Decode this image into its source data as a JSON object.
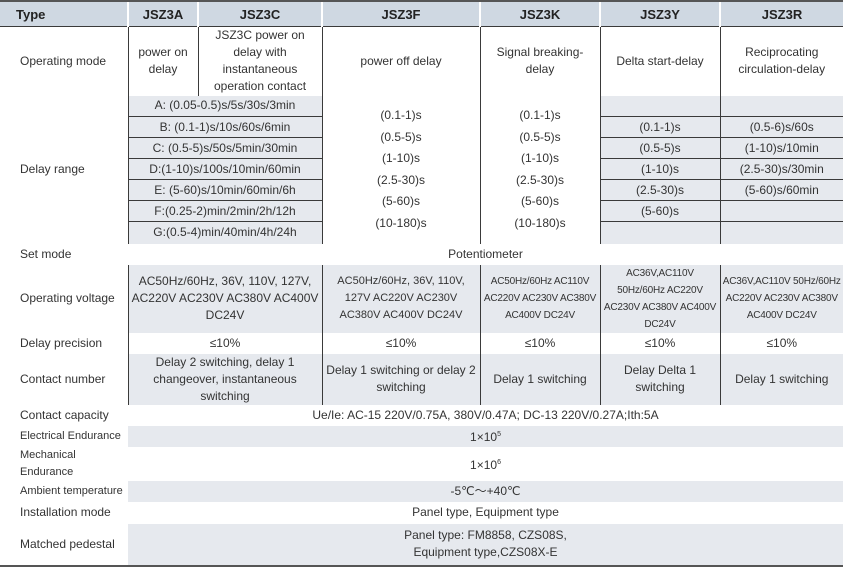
{
  "header": {
    "type": "Type",
    "cols": [
      "JSZ3A",
      "JSZ3C",
      "JSZ3F",
      "JSZ3K",
      "JSZ3Y",
      "JSZ3R"
    ]
  },
  "rows": {
    "operating_mode": {
      "label": "Operating mode",
      "a": "power on delay",
      "c": "JSZ3C power on delay with instantaneous operation contact",
      "f": "power off delay",
      "k": "Signal breaking-delay",
      "y": "Delta start-delay",
      "r": "Reciprocating circulation-delay"
    },
    "delay_range": {
      "label": "Delay range",
      "ac": [
        "A: (0.05-0.5)s/5s/30s/3min",
        "B: (0.1-1)s/10s/60s/6min",
        "C: (0.5-5)s/50s/5min/30min",
        "D:(1-10)s/100s/10min/60min",
        "E: (5-60)s/10min/60min/6h",
        "F:(0.25-2)min/2min/2h/12h",
        "G:(0.5-4)min/40min/4h/24h"
      ],
      "f": [
        "(0.1-1)s",
        "(0.5-5)s",
        "(1-10)s",
        "(2.5-30)s",
        "(5-60)s",
        "(10-180)s"
      ],
      "k": [
        "(0.1-1)s",
        "(0.5-5)s",
        "(1-10)s",
        "(2.5-30)s",
        "(5-60)s",
        "(10-180)s"
      ],
      "y": [
        "(0.1-1)s",
        "(0.5-5)s",
        "(1-10)s",
        "(2.5-30)s",
        "(5-60)s"
      ],
      "r": [
        "(0.5-6)s/60s",
        "(1-10)s/10min",
        "(2.5-30)s/30min",
        "(5-60)s/60min"
      ]
    },
    "set_mode": {
      "label": "Set mode",
      "value": "Potentiometer"
    },
    "operating_voltage": {
      "label": "Operating voltage",
      "ac": "AC50Hz/60Hz, 36V, 110V, 127V, AC220V AC230V AC380V AC400V DC24V",
      "f": "AC50Hz/60Hz, 36V, 110V, 127V AC220V AC230V AC380V AC400V DC24V",
      "k": "AC50Hz/60Hz AC110V AC220V AC230V AC380V AC400V DC24V",
      "y": "AC36V,AC110V 50Hz/60Hz AC220V AC230V AC380V AC400V DC24V",
      "r": "AC36V,AC110V 50Hz/60Hz AC220V AC230V AC380V AC400V DC24V"
    },
    "delay_precision": {
      "label": "Delay precision",
      "value": "≤10%"
    },
    "contact_number": {
      "label": "Contact number",
      "ac": "Delay 2 switching, delay 1 changeover, instantaneous switching",
      "f": "Delay 1 switching or delay 2 switching",
      "k": "Delay 1 switching",
      "y": "Delay Delta 1 switching",
      "r": "Delay 1 switching"
    },
    "contact_capacity": {
      "label": "Contact capacity",
      "value": "Ue/Ie: AC-15 220V/0.75A, 380V/0.47A; DC-13 220V/0.27A;Ith:5A"
    },
    "electrical_endurance": {
      "label": "Electrical Endurance",
      "base": "1×10",
      "exp": "5"
    },
    "mechanical_endurance": {
      "label": "Mechanical Endurance",
      "base": "1×10",
      "exp": "6"
    },
    "ambient_temperature": {
      "label": "Ambient temperature",
      "value": "-5℃～+40℃"
    },
    "installation_mode": {
      "label": "Installation mode",
      "value": "Panel type, Equipment type"
    },
    "matched_pedestal": {
      "label": "Matched pedestal",
      "line1": "Panel type: FM8858, CZS08S,",
      "line2": "Equipment type,CZS08X-E"
    }
  }
}
